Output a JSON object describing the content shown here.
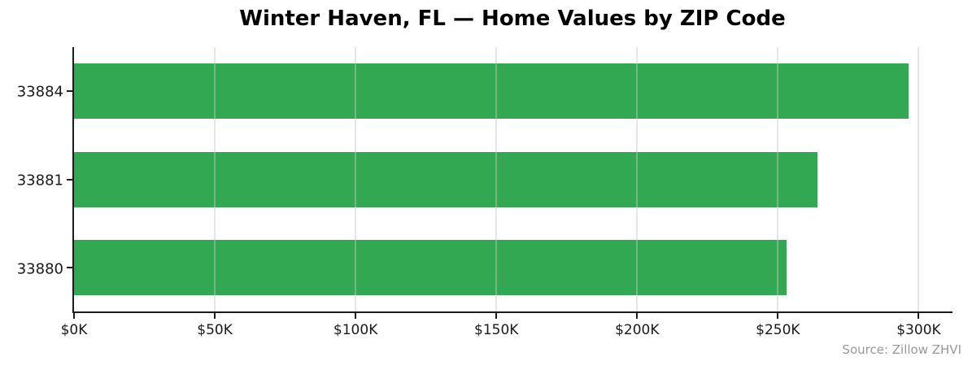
{
  "title": "Winter Haven, FL — Home Values by ZIP Code",
  "source_note": "Source: Zillow ZHVI",
  "colors": {
    "bar": "#32a852",
    "axis": "#1c1c1c",
    "grid": "rgba(200,200,200,0.45)",
    "tick_label": "#1a1a1a",
    "source_text": "#999999"
  },
  "chart_data": {
    "type": "bar",
    "orientation": "horizontal",
    "title": "Winter Haven, FL — Home Values by ZIP Code",
    "categories": [
      "33884",
      "33881",
      "33880"
    ],
    "values": [
      296500,
      264000,
      253000
    ],
    "value_unit": "USD",
    "xlabel": "",
    "ylabel": "",
    "xlim": [
      0,
      312000
    ],
    "xticks": [
      0,
      50000,
      100000,
      150000,
      200000,
      250000,
      300000
    ],
    "xtick_labels": [
      "$0K",
      "$50K",
      "$100K",
      "$150K",
      "$200K",
      "$250K",
      "$300K"
    ],
    "grid": true,
    "grid_on_top": true,
    "legend": false,
    "source": "Source: Zillow ZHVI"
  }
}
